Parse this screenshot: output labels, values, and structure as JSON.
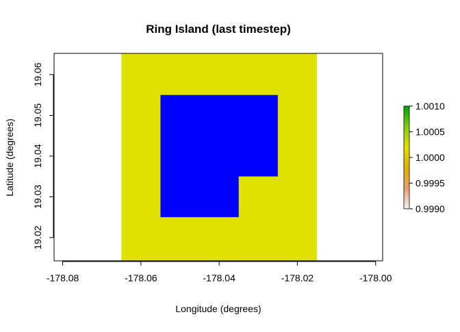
{
  "chart_data": {
    "type": "heatmap",
    "title": "Ring Island (last timestep)",
    "xlabel": "Longitude (degrees)",
    "ylabel": "Latitude (degrees)",
    "xlim": [
      -178.0822,
      -177.9982
    ],
    "ylim": [
      19.0143,
      19.0652
    ],
    "x_ticks": [
      -178.08,
      -178.06,
      -178.04,
      -178.02,
      -178.0
    ],
    "x_tick_labels": [
      "-178.08",
      "-178.06",
      "-178.04",
      "-178.02",
      "-178.00"
    ],
    "y_ticks": [
      19.02,
      19.03,
      19.04,
      19.05,
      19.06
    ],
    "y_tick_labels": [
      "19.02",
      "19.03",
      "19.04",
      "19.05",
      "19.06"
    ],
    "layers": [
      {
        "kind": "raster",
        "color": "#e1e100",
        "x": [
          -178.065,
          -178.015
        ],
        "y": [
          19.0143,
          19.0652
        ]
      },
      {
        "kind": "polygon",
        "color": "#0000ff",
        "points": [
          [
            -178.055,
            19.055
          ],
          [
            -178.025,
            19.055
          ],
          [
            -178.025,
            19.035
          ],
          [
            -178.035,
            19.035
          ],
          [
            -178.035,
            19.025
          ],
          [
            -178.055,
            19.025
          ]
        ]
      }
    ],
    "legend": {
      "placement": "right",
      "range": [
        0.999,
        1.001
      ],
      "ticks": [
        1.001,
        1.0005,
        1.0,
        0.9995,
        0.999
      ],
      "tick_labels": [
        "1.0010",
        "1.0005",
        "1.0000",
        "0.9995",
        "0.9990"
      ],
      "colors": [
        "#f2f2f2",
        "#e8a070",
        "#e0b000",
        "#e1e100",
        "#80cc10",
        "#00a600"
      ]
    }
  }
}
